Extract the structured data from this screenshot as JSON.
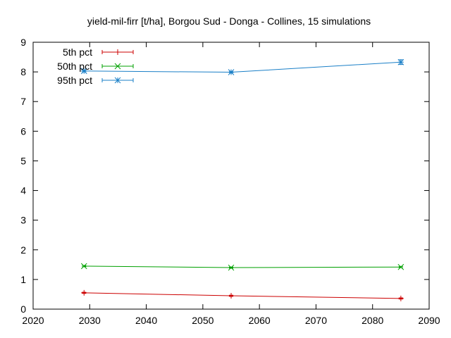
{
  "chart_data": {
    "type": "line",
    "title": "yield-mil-firr [t/ha], Borgou Sud - Donga - Collines, 15 simulations",
    "xlabel": "",
    "ylabel": "",
    "xlim": [
      2020,
      2090
    ],
    "ylim": [
      0,
      9
    ],
    "xticks": [
      2020,
      2030,
      2040,
      2050,
      2060,
      2070,
      2080,
      2090
    ],
    "yticks": [
      0,
      1,
      2,
      3,
      4,
      5,
      6,
      7,
      8,
      9
    ],
    "grid": false,
    "legend_position": "top-left",
    "x": [
      2029,
      2055,
      2085
    ],
    "series": [
      {
        "name": "5th pct",
        "values": [
          0.55,
          0.45,
          0.36
        ],
        "errors": [
          0.02,
          0.02,
          0.02
        ],
        "color": "#cc0000",
        "marker": "plus"
      },
      {
        "name": "50th pct",
        "values": [
          1.45,
          1.4,
          1.42
        ],
        "errors": [
          0.02,
          0.02,
          0.02
        ],
        "color": "#00a000",
        "marker": "cross"
      },
      {
        "name": "95th pct",
        "values": [
          8.03,
          7.99,
          8.33
        ],
        "errors": [
          0.03,
          0.03,
          0.08
        ],
        "color": "#1a7fc7",
        "marker": "star"
      }
    ]
  }
}
